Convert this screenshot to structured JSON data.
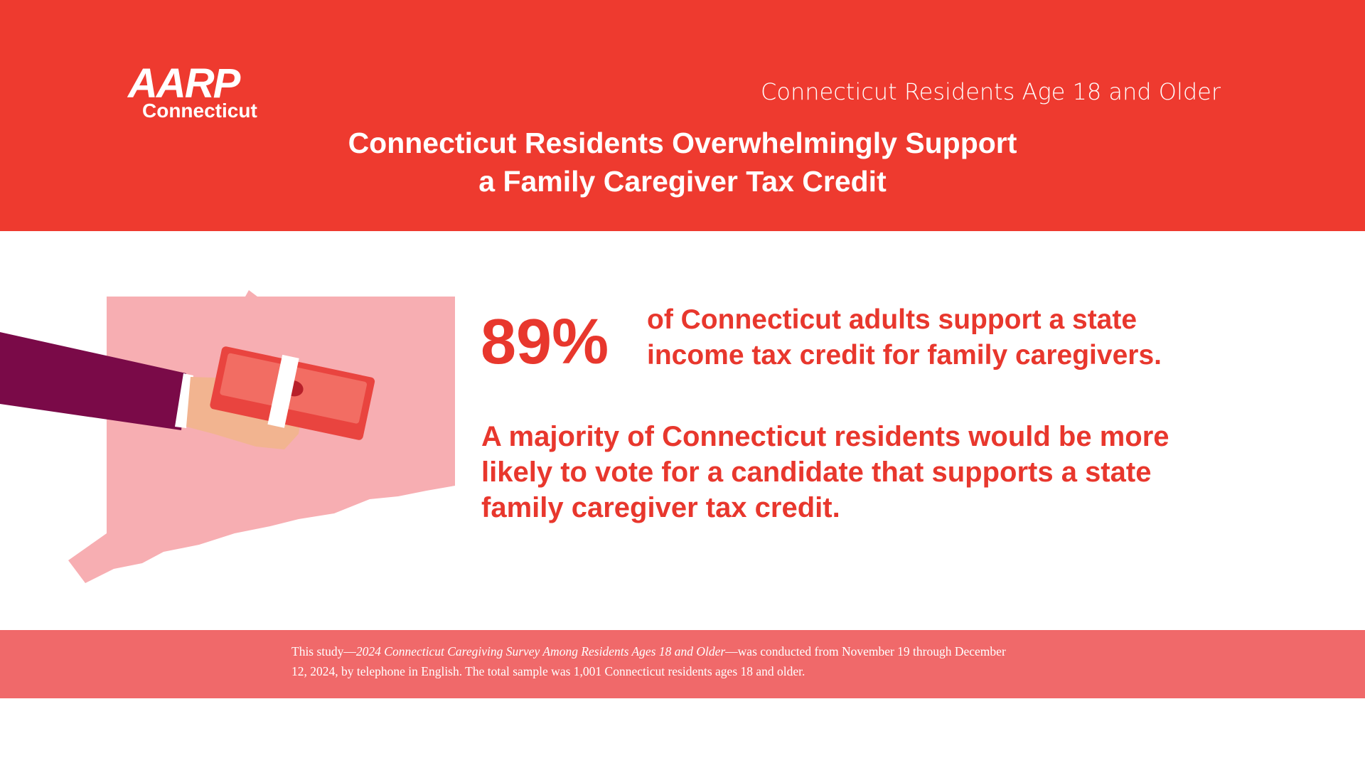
{
  "header": {
    "logo": "AARP",
    "logo_sub": "Connecticut",
    "audience": "Connecticut Residents Age 18 and Older",
    "title_lines": [
      "Connecticut Residents Overwhelmingly Support",
      "a Family Caregiver Tax Credit"
    ]
  },
  "stat": {
    "figure": "89%",
    "lines": [
      "of Connecticut adults support a state",
      "income tax credit for family caregivers."
    ]
  },
  "finding": {
    "lines": [
      "A majority of Connecticut residents would be more",
      "likely to vote for a candidate that supports a state",
      "family caregiver tax credit."
    ]
  },
  "footer": {
    "lead": "This study—",
    "survey": "2024 Connecticut Caregiving Survey Among Residents Ages 18 and Older",
    "rest_line1": "—was conducted from November 19 through December",
    "line2": "12, 2024, by telephone in English. The total sample was 1,001 Connecticut residents ages 18 and older."
  }
}
